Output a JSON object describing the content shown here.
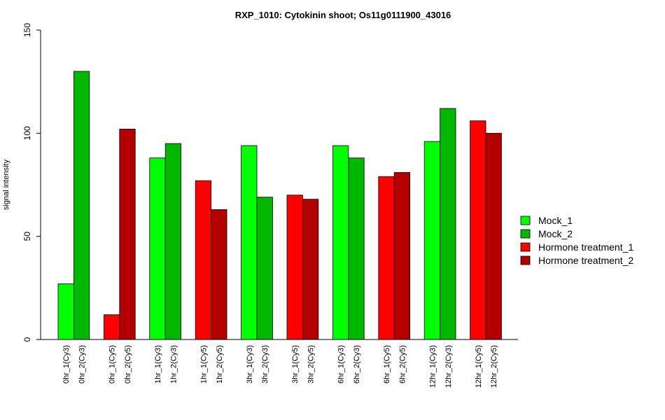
{
  "chart_data": {
    "type": "bar",
    "title": "RXP_1010: Cytokinin shoot; Os11g0111900_43016",
    "xlabel": "",
    "ylabel": "signal intensity",
    "ylim": [
      0,
      150
    ],
    "yticks": [
      0,
      50,
      100,
      150
    ],
    "categories": [
      "0hr_1(Cy3)",
      "0hr_2(Cy3)",
      "0hr_1(Cy5)",
      "0hr_2(Cy5)",
      "1hr_1(Cy3)",
      "1hr_2(Cy3)",
      "1hr_1(Cy5)",
      "1hr_2(Cy5)",
      "3hr_1(Cy3)",
      "3hr_2(Cy3)",
      "3hr_1(Cy5)",
      "3hr_2(Cy5)",
      "6hr_1(Cy3)",
      "6hr_2(Cy3)",
      "6hr_1(Cy5)",
      "6hr_2(Cy5)",
      "12hr_1(Cy3)",
      "12hr_2(Cy3)",
      "12hr_1(Cy5)",
      "12hr_2(Cy5)"
    ],
    "values": [
      27,
      130,
      12,
      102,
      88,
      95,
      77,
      63,
      94,
      69,
      70,
      68,
      94,
      88,
      79,
      81,
      96,
      112,
      106,
      100
    ],
    "bar_series": [
      0,
      1,
      2,
      3,
      0,
      1,
      2,
      3,
      0,
      1,
      2,
      3,
      0,
      1,
      2,
      3,
      0,
      1,
      2,
      3
    ],
    "series": [
      {
        "name": "Mock_1",
        "color": "#00ff00"
      },
      {
        "name": "Mock_2",
        "color": "#00b800"
      },
      {
        "name": "Hormone treatment_1",
        "color": "#ff0000"
      },
      {
        "name": "Hormone treatment_2",
        "color": "#b40000"
      }
    ],
    "grid": false,
    "legend_position": "right"
  }
}
